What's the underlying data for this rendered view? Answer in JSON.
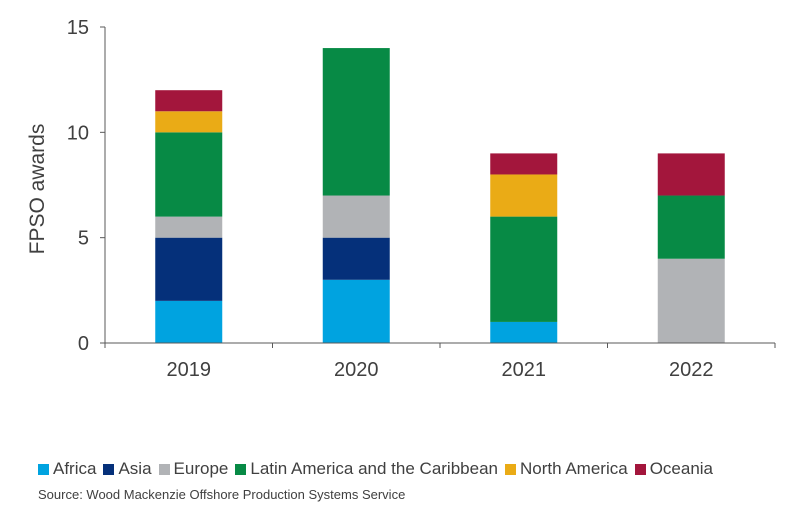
{
  "chart_data": {
    "type": "bar",
    "stacked": true,
    "categories": [
      "2019",
      "2020",
      "2021",
      "2022"
    ],
    "series": [
      {
        "name": "Africa",
        "color": "#00a3e0",
        "values": [
          2,
          3,
          1,
          0
        ]
      },
      {
        "name": "Asia",
        "color": "#05307a",
        "values": [
          3,
          2,
          0,
          0
        ]
      },
      {
        "name": "Europe",
        "color": "#b1b3b6",
        "values": [
          1,
          2,
          0,
          4
        ]
      },
      {
        "name": "Latin America and the Caribbean",
        "color": "#078a45",
        "values": [
          4,
          7,
          5,
          3
        ]
      },
      {
        "name": "North America",
        "color": "#eaab16",
        "values": [
          1,
          0,
          2,
          0
        ]
      },
      {
        "name": "Oceania",
        "color": "#a3163c",
        "values": [
          1,
          0,
          1,
          2
        ]
      }
    ],
    "ylabel": "FPSO awards",
    "ylim": [
      0,
      15
    ],
    "yticks": [
      0,
      5,
      10,
      15
    ],
    "grid": false,
    "legend_position": "bottom"
  },
  "source": "Source: Wood Mackenzie Offshore Production Systems Service"
}
